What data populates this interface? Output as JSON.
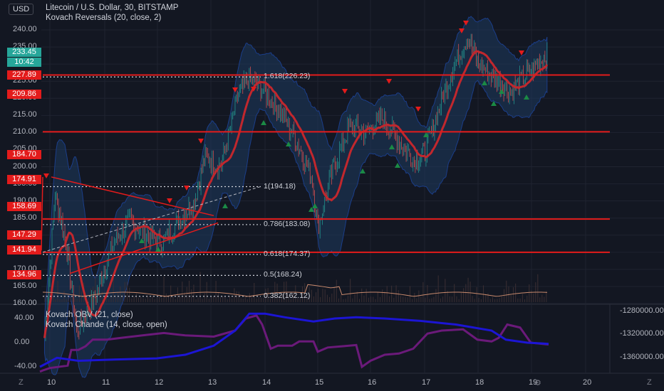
{
  "header": {
    "currency_button": "USD",
    "title": "Litecoin / U.S. Dollar, 30, BITSTAMP",
    "indicator": "Kovach Reversals (20, close, 2)"
  },
  "lower_pane": {
    "obv_label": "Kovach OBV (21, close)",
    "chande_label": "Kovach Chande (14, close, open)"
  },
  "colors": {
    "background": "#131722",
    "up_candle": "#26a69a",
    "down_candle": "#ef5350",
    "level_line": "#e31b1b",
    "basis_line": "#c1272d",
    "band_fill": "#1e3a5f",
    "obv_line": "#1c15d4",
    "chande_line": "#6b1a7a"
  },
  "price_axis": {
    "ticks": [
      "240.00",
      "235.00",
      "230.00",
      "225.00",
      "220.00",
      "215.00",
      "210.00",
      "205.00",
      "200.00",
      "195.00",
      "190.00",
      "185.00",
      "180.00",
      "175.00",
      "170.00",
      "165.00",
      "160.00"
    ],
    "current_price": "233.45",
    "countdown": "10:42",
    "red_tags": [
      "227.89",
      "209.86",
      "184.70",
      "174.91",
      "158.69",
      "147.29",
      "141.94",
      "134.96"
    ]
  },
  "lower_axis": {
    "left_ticks": [
      "40.00",
      "0.00",
      "-40.00"
    ],
    "right_ticks": [
      "-1280000.00",
      "-1320000.00",
      "-1360000.00"
    ]
  },
  "time_axis": {
    "ticks": [
      "10",
      "11",
      "12",
      "13",
      "14",
      "15",
      "16",
      "17",
      "18",
      "19",
      "20"
    ]
  },
  "fib_labels": [
    "1.618(226.23)",
    "1(194.18)",
    "0.786(183.08)",
    "0.618(174.37)",
    "0.5(168.24)",
    "0.382(162.12)"
  ],
  "bottom_buttons": {
    "left": "Z",
    "right": "Z"
  }
}
